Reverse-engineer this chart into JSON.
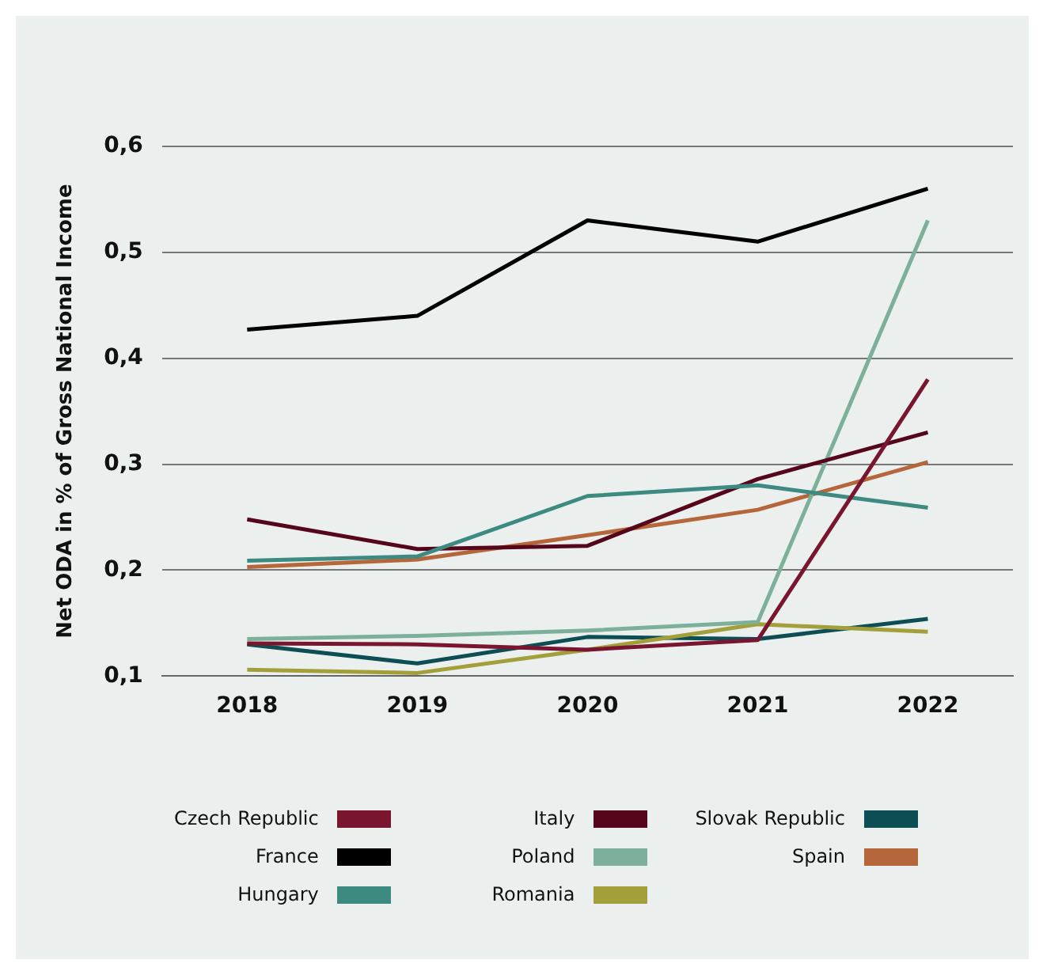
{
  "chart_data": {
    "type": "line",
    "ylabel": "Net ODA in % of Gross National Income",
    "categories": [
      "2018",
      "2019",
      "2020",
      "2021",
      "2022"
    ],
    "series": [
      {
        "name": "Czech Republic",
        "color": "#7a1530",
        "values": [
          0.131,
          0.13,
          0.125,
          0.134,
          0.38
        ]
      },
      {
        "name": "France",
        "color": "#000000",
        "values": [
          0.427,
          0.44,
          0.53,
          0.51,
          0.56
        ]
      },
      {
        "name": "Hungary",
        "color": "#3d8a80",
        "values": [
          0.209,
          0.213,
          0.27,
          0.28,
          0.259
        ]
      },
      {
        "name": "Italy",
        "color": "#55061a",
        "values": [
          0.248,
          0.22,
          0.223,
          0.286,
          0.33
        ]
      },
      {
        "name": "Poland",
        "color": "#7db09a",
        "values": [
          0.135,
          0.138,
          0.143,
          0.151,
          0.53
        ]
      },
      {
        "name": "Romania",
        "color": "#a3a03c",
        "values": [
          0.106,
          0.103,
          0.125,
          0.149,
          0.142
        ]
      },
      {
        "name": "Slovak Republic",
        "color": "#0d4e55",
        "values": [
          0.13,
          0.112,
          0.137,
          0.135,
          0.154
        ]
      },
      {
        "name": "Spain",
        "color": "#b5663a",
        "values": [
          0.203,
          0.21,
          0.233,
          0.257,
          0.302
        ]
      }
    ],
    "ylim": [
      0.1,
      0.6
    ],
    "yticks": [
      {
        "value": 0.1,
        "label": "0,1"
      },
      {
        "value": 0.2,
        "label": "0,2"
      },
      {
        "value": 0.3,
        "label": "0,3"
      },
      {
        "value": 0.4,
        "label": "0,4"
      },
      {
        "value": 0.5,
        "label": "0,5"
      },
      {
        "value": 0.6,
        "label": "0,6"
      }
    ],
    "grid": "y",
    "legend": "bottom",
    "marker": "none",
    "line_style": "solid"
  }
}
